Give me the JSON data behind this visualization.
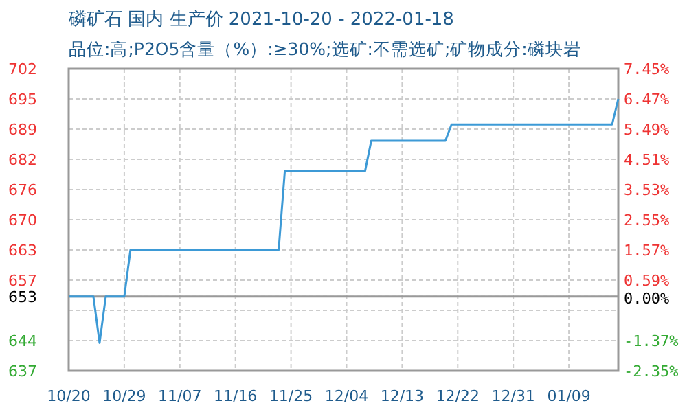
{
  "chart_data": {
    "type": "line",
    "title": "磷矿石 国内 生产价 2021-10-20 - 2022-01-18",
    "subtitle": "品位:高;P2O5含量（%）:≥30%;选矿:不需选矿;矿物成分:磷块岩",
    "x": [
      "2021-10-20",
      "2021-10-24",
      "2021-10-25",
      "2021-10-26",
      "2021-10-29",
      "2021-10-30",
      "2021-11-23",
      "2021-11-24",
      "2021-12-07",
      "2021-12-08",
      "2021-12-20",
      "2021-12-21",
      "2022-01-16",
      "2022-01-17"
    ],
    "series": [
      {
        "color": "#3d9ad6",
        "values": [
          653,
          653,
          643,
          653,
          653,
          663,
          663,
          680,
          680,
          686.5,
          686.5,
          690,
          690,
          695.5
        ]
      }
    ],
    "xlim": [
      "2021-10-20",
      "2022-01-17"
    ],
    "xticks": [
      {
        "value": "2021-10-20",
        "label": "10/20"
      },
      {
        "value": "2021-10-29",
        "label": "10/29"
      },
      {
        "value": "2021-11-07",
        "label": "11/07"
      },
      {
        "value": "2021-11-16",
        "label": "11/16"
      },
      {
        "value": "2021-11-25",
        "label": "11/25"
      },
      {
        "value": "2021-12-04",
        "label": "12/04"
      },
      {
        "value": "2021-12-13",
        "label": "12/13"
      },
      {
        "value": "2021-12-22",
        "label": "12/22"
      },
      {
        "value": "2021-12-31",
        "label": "12/31"
      },
      {
        "value": "2022-01-09",
        "label": "01/09"
      }
    ],
    "ylim": [
      637,
      702
    ],
    "yticks": [
      {
        "value": 702,
        "label": "702"
      },
      {
        "value": 695.5,
        "label": "695"
      },
      {
        "value": 689,
        "label": "689"
      },
      {
        "value": 682.5,
        "label": "682"
      },
      {
        "value": 676,
        "label": "676"
      },
      {
        "value": 669.5,
        "label": "670"
      },
      {
        "value": 663,
        "label": "663"
      },
      {
        "value": 656.5,
        "label": "657"
      },
      {
        "value": 653,
        "label": "653"
      },
      {
        "value": 650,
        "label": null
      },
      {
        "value": 643.5,
        "label": "644"
      },
      {
        "value": 637,
        "label": "637"
      }
    ],
    "y2lim": [
      -2.35,
      7.45
    ],
    "y2ticks": [
      {
        "value": 7.45,
        "label": "7.45%"
      },
      {
        "value": 6.47,
        "label": "6.47%"
      },
      {
        "value": 5.49,
        "label": "5.49%"
      },
      {
        "value": 4.51,
        "label": "4.51%"
      },
      {
        "value": 3.53,
        "label": "3.53%"
      },
      {
        "value": 2.55,
        "label": "2.55%"
      },
      {
        "value": 1.57,
        "label": "1.57%"
      },
      {
        "value": 0.59,
        "label": "0.59%"
      },
      {
        "value": 0,
        "label": "0.00%"
      },
      {
        "value": -1.37,
        "label": "-1.37%"
      },
      {
        "value": -2.35,
        "label": "-2.35%"
      }
    ],
    "ref_lines": [
      {
        "axis": "y",
        "value": 653,
        "color": "#999999"
      }
    ],
    "grid": true,
    "marker": "none",
    "line_style": "solid"
  }
}
